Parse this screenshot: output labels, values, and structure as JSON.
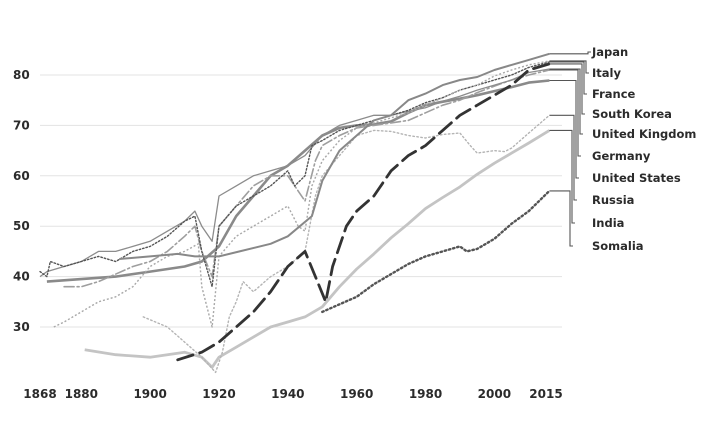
{
  "chart_data": {
    "type": "line",
    "title": "",
    "xlabel": "",
    "ylabel": "",
    "xlim": [
      1868,
      2020
    ],
    "ylim": [
      20,
      86
    ],
    "grid": "horizontal",
    "legend_placement": "right",
    "x_ticks": [
      {
        "value": 1868,
        "label": "1868"
      },
      {
        "value": 1880,
        "label": "1880"
      },
      {
        "value": 1900,
        "label": "1900"
      },
      {
        "value": 1920,
        "label": "1920"
      },
      {
        "value": 1940,
        "label": "1940"
      },
      {
        "value": 1960,
        "label": "1960"
      },
      {
        "value": 1980,
        "label": "1980"
      },
      {
        "value": 2000,
        "label": "2000"
      },
      {
        "value": 2015,
        "label": "2015"
      }
    ],
    "y_ticks": [
      {
        "value": 30,
        "label": "30"
      },
      {
        "value": 40,
        "label": "40"
      },
      {
        "value": 50,
        "label": "50"
      },
      {
        "value": 60,
        "label": "60"
      },
      {
        "value": 70,
        "label": "70"
      },
      {
        "value": 80,
        "label": "80"
      }
    ],
    "series": [
      {
        "name": "Japan",
        "color": "#888888",
        "stroke": 2,
        "dash": "",
        "points": [
          [
            1891,
            43.5
          ],
          [
            1900,
            44
          ],
          [
            1908,
            44.5
          ],
          [
            1913,
            44
          ],
          [
            1920,
            44
          ],
          [
            1926,
            45
          ],
          [
            1935,
            46.5
          ],
          [
            1940,
            48
          ],
          [
            1947,
            52
          ],
          [
            1950,
            59
          ],
          [
            1955,
            65
          ],
          [
            1960,
            68
          ],
          [
            1965,
            71
          ],
          [
            1970,
            72
          ],
          [
            1975,
            75
          ],
          [
            1980,
            76.3
          ],
          [
            1985,
            78
          ],
          [
            1990,
            79
          ],
          [
            1995,
            79.6
          ],
          [
            2000,
            81
          ],
          [
            2005,
            82
          ],
          [
            2010,
            83
          ],
          [
            2016,
            84.2
          ]
        ]
      },
      {
        "name": "Italy",
        "color": "#a8a8a8",
        "stroke": 1.4,
        "dash": "2,2",
        "points": [
          [
            1872,
            30
          ],
          [
            1875,
            31
          ],
          [
            1880,
            33
          ],
          [
            1885,
            35
          ],
          [
            1890,
            36
          ],
          [
            1895,
            38
          ],
          [
            1900,
            42
          ],
          [
            1905,
            44
          ],
          [
            1910,
            45
          ],
          [
            1914,
            46.5
          ],
          [
            1915,
            38
          ],
          [
            1918,
            30
          ],
          [
            1920,
            44
          ],
          [
            1925,
            48
          ],
          [
            1930,
            50
          ],
          [
            1935,
            52
          ],
          [
            1940,
            54
          ],
          [
            1943,
            50
          ],
          [
            1945,
            49
          ],
          [
            1947,
            58
          ],
          [
            1950,
            63
          ],
          [
            1955,
            67
          ],
          [
            1960,
            69.5
          ],
          [
            1965,
            70.5
          ],
          [
            1970,
            71.5
          ],
          [
            1975,
            72.5
          ],
          [
            1980,
            74
          ],
          [
            1985,
            75.5
          ],
          [
            1990,
            77
          ],
          [
            1995,
            78
          ],
          [
            2000,
            79.8
          ],
          [
            2005,
            81
          ],
          [
            2010,
            82
          ],
          [
            2016,
            82.8
          ]
        ]
      },
      {
        "name": "France",
        "color": "#555555",
        "stroke": 1.4,
        "dash": "1.5,2",
        "points": [
          [
            1868,
            41
          ],
          [
            1870,
            40
          ],
          [
            1871,
            43
          ],
          [
            1875,
            42
          ],
          [
            1880,
            43
          ],
          [
            1885,
            44
          ],
          [
            1890,
            43
          ],
          [
            1895,
            45
          ],
          [
            1900,
            46
          ],
          [
            1905,
            48
          ],
          [
            1910,
            51
          ],
          [
            1913,
            52
          ],
          [
            1915,
            45
          ],
          [
            1918,
            38
          ],
          [
            1920,
            50
          ],
          [
            1925,
            54
          ],
          [
            1930,
            56
          ],
          [
            1935,
            58
          ],
          [
            1940,
            61
          ],
          [
            1942,
            58
          ],
          [
            1945,
            60
          ],
          [
            1947,
            66
          ],
          [
            1950,
            67
          ],
          [
            1955,
            69
          ],
          [
            1960,
            70
          ],
          [
            1965,
            71
          ],
          [
            1970,
            72
          ],
          [
            1975,
            73
          ],
          [
            1980,
            74.5
          ],
          [
            1985,
            75.5
          ],
          [
            1990,
            77
          ],
          [
            1995,
            78
          ],
          [
            2000,
            79
          ],
          [
            2005,
            80
          ],
          [
            2010,
            81.5
          ],
          [
            2016,
            82.6
          ]
        ]
      },
      {
        "name": "South Korea",
        "color": "#333333",
        "stroke": 2.8,
        "dash": "16,7",
        "points": [
          [
            1908,
            23.5
          ],
          [
            1915,
            25
          ],
          [
            1920,
            27
          ],
          [
            1925,
            30
          ],
          [
            1930,
            33
          ],
          [
            1935,
            37
          ],
          [
            1940,
            42
          ],
          [
            1945,
            45
          ],
          [
            1948,
            40
          ],
          [
            1951,
            35
          ],
          [
            1953,
            42
          ],
          [
            1957,
            50
          ],
          [
            1960,
            53
          ],
          [
            1965,
            56
          ],
          [
            1970,
            61
          ],
          [
            1975,
            64
          ],
          [
            1980,
            66
          ],
          [
            1985,
            69
          ],
          [
            1990,
            72
          ],
          [
            1995,
            74
          ],
          [
            2000,
            76
          ],
          [
            2005,
            78
          ],
          [
            2010,
            81
          ],
          [
            2016,
            82.2
          ]
        ]
      },
      {
        "name": "United Kingdom",
        "color": "#8c8c8c",
        "stroke": 1.3,
        "dash": "",
        "points": [
          [
            1868,
            40
          ],
          [
            1870,
            41
          ],
          [
            1875,
            42
          ],
          [
            1880,
            43
          ],
          [
            1885,
            45
          ],
          [
            1890,
            45
          ],
          [
            1895,
            46
          ],
          [
            1900,
            47
          ],
          [
            1905,
            49
          ],
          [
            1910,
            51
          ],
          [
            1913,
            53
          ],
          [
            1915,
            50
          ],
          [
            1918,
            47
          ],
          [
            1920,
            56
          ],
          [
            1925,
            58
          ],
          [
            1930,
            60
          ],
          [
            1935,
            61
          ],
          [
            1940,
            62
          ],
          [
            1945,
            64
          ],
          [
            1950,
            68
          ],
          [
            1955,
            70
          ],
          [
            1960,
            71
          ],
          [
            1965,
            72
          ],
          [
            1970,
            72
          ],
          [
            1975,
            72.8
          ],
          [
            1980,
            73.5
          ],
          [
            1985,
            74.8
          ],
          [
            1990,
            75.8
          ],
          [
            1995,
            77
          ],
          [
            2000,
            78
          ],
          [
            2005,
            79
          ],
          [
            2010,
            80.5
          ],
          [
            2016,
            81.2
          ]
        ]
      },
      {
        "name": "Germany",
        "color": "#9e9e9e",
        "stroke": 1.6,
        "dash": "10,3,2,3",
        "points": [
          [
            1875,
            38
          ],
          [
            1880,
            38
          ],
          [
            1885,
            39
          ],
          [
            1890,
            40.5
          ],
          [
            1895,
            42
          ],
          [
            1900,
            43
          ],
          [
            1905,
            45
          ],
          [
            1910,
            48
          ],
          [
            1913,
            50
          ],
          [
            1915,
            45
          ],
          [
            1918,
            40
          ],
          [
            1920,
            50
          ],
          [
            1925,
            54
          ],
          [
            1930,
            58
          ],
          [
            1935,
            60
          ],
          [
            1940,
            60
          ],
          [
            1945,
            55
          ],
          [
            1948,
            63
          ],
          [
            1950,
            66
          ],
          [
            1955,
            68
          ],
          [
            1960,
            69.5
          ],
          [
            1965,
            70
          ],
          [
            1970,
            70.5
          ],
          [
            1975,
            71
          ],
          [
            1980,
            72.5
          ],
          [
            1985,
            74
          ],
          [
            1990,
            75
          ],
          [
            1995,
            76.5
          ],
          [
            2000,
            77.8
          ],
          [
            2005,
            79
          ],
          [
            2010,
            80
          ],
          [
            2016,
            81
          ]
        ]
      },
      {
        "name": "United States",
        "color": "#8a8a8a",
        "stroke": 2.6,
        "dash": "",
        "points": [
          [
            1870,
            39
          ],
          [
            1880,
            39.5
          ],
          [
            1890,
            40
          ],
          [
            1900,
            41
          ],
          [
            1910,
            42
          ],
          [
            1915,
            43
          ],
          [
            1920,
            46
          ],
          [
            1925,
            52
          ],
          [
            1930,
            56
          ],
          [
            1935,
            60
          ],
          [
            1940,
            62
          ],
          [
            1945,
            65
          ],
          [
            1950,
            68
          ],
          [
            1955,
            69.5
          ],
          [
            1960,
            70
          ],
          [
            1965,
            70.2
          ],
          [
            1970,
            70.8
          ],
          [
            1975,
            72.5
          ],
          [
            1980,
            74
          ],
          [
            1985,
            74.7
          ],
          [
            1990,
            75.3
          ],
          [
            1995,
            76
          ],
          [
            2000,
            76.8
          ],
          [
            2005,
            77.6
          ],
          [
            2010,
            78.5
          ],
          [
            2016,
            78.9
          ]
        ]
      },
      {
        "name": "Russia",
        "color": "#b4b4b4",
        "stroke": 1.4,
        "dash": "1.5,2.5",
        "points": [
          [
            1898,
            32
          ],
          [
            1905,
            30
          ],
          [
            1910,
            27
          ],
          [
            1915,
            24
          ],
          [
            1919,
            21
          ],
          [
            1921,
            25
          ],
          [
            1923,
            32
          ],
          [
            1925,
            35
          ],
          [
            1927,
            39
          ],
          [
            1930,
            37
          ],
          [
            1935,
            40
          ],
          [
            1940,
            42
          ],
          [
            1945,
            45
          ],
          [
            1948,
            56
          ],
          [
            1950,
            60
          ],
          [
            1955,
            64
          ],
          [
            1960,
            68
          ],
          [
            1965,
            69
          ],
          [
            1970,
            68.8
          ],
          [
            1975,
            68
          ],
          [
            1980,
            67.5
          ],
          [
            1985,
            68.2
          ],
          [
            1990,
            68.5
          ],
          [
            1993,
            66
          ],
          [
            1995,
            64.5
          ],
          [
            2000,
            65
          ],
          [
            2003,
            64.8
          ],
          [
            2005,
            65.5
          ],
          [
            2010,
            68.5
          ],
          [
            2016,
            72
          ]
        ]
      },
      {
        "name": "India",
        "color": "#c4c4c4",
        "stroke": 2.8,
        "dash": "",
        "points": [
          [
            1881,
            25.5
          ],
          [
            1890,
            24.5
          ],
          [
            1900,
            24
          ],
          [
            1910,
            25
          ],
          [
            1915,
            24
          ],
          [
            1918,
            22
          ],
          [
            1920,
            24
          ],
          [
            1925,
            26
          ],
          [
            1930,
            28
          ],
          [
            1935,
            30
          ],
          [
            1940,
            31
          ],
          [
            1945,
            32
          ],
          [
            1950,
            34
          ],
          [
            1955,
            38
          ],
          [
            1960,
            41.5
          ],
          [
            1965,
            44.5
          ],
          [
            1970,
            47.7
          ],
          [
            1975,
            50.5
          ],
          [
            1980,
            53.5
          ],
          [
            1985,
            55.7
          ],
          [
            1990,
            57.8
          ],
          [
            1995,
            60.3
          ],
          [
            2000,
            62.5
          ],
          [
            2005,
            64.5
          ],
          [
            2010,
            66.5
          ],
          [
            2016,
            69
          ]
        ]
      },
      {
        "name": "Somalia",
        "color": "#555555",
        "stroke": 2.4,
        "dash": "1.5,2.8",
        "points": [
          [
            1950,
            33
          ],
          [
            1955,
            34.5
          ],
          [
            1960,
            36
          ],
          [
            1965,
            38.5
          ],
          [
            1970,
            40.5
          ],
          [
            1975,
            42.5
          ],
          [
            1980,
            44
          ],
          [
            1985,
            45
          ],
          [
            1990,
            46
          ],
          [
            1992,
            45
          ],
          [
            1995,
            45.5
          ],
          [
            2000,
            47.5
          ],
          [
            2005,
            50.5
          ],
          [
            2010,
            53
          ],
          [
            2013,
            55
          ],
          [
            2016,
            57
          ]
        ]
      }
    ]
  }
}
